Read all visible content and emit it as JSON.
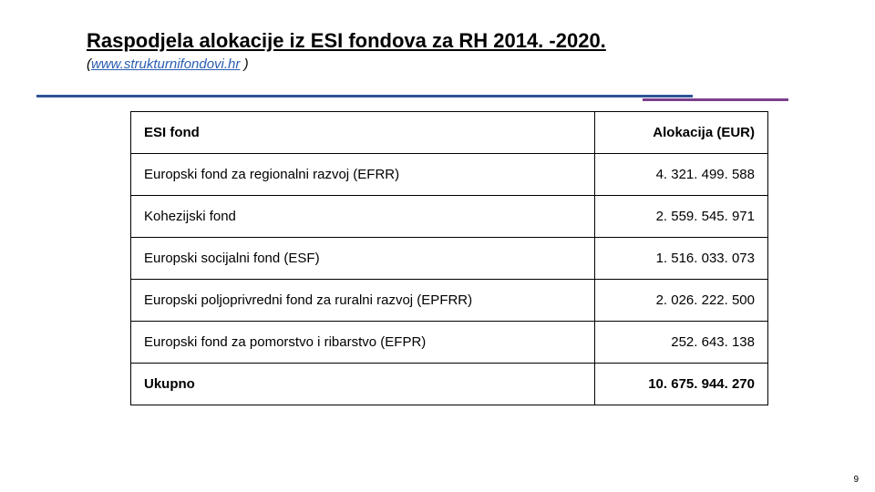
{
  "title": "Raspodjela alokacije iz ESI fondova za RH 2014. -2020.",
  "subtitle_prefix": "(",
  "subtitle_link": "www.strukturnifondovi.hr",
  "subtitle_suffix": " )",
  "table": {
    "headers": {
      "fund": "ESI fond",
      "allocation": "Alokacija (EUR)"
    },
    "rows": [
      {
        "fund": "Europski fond za regionalni razvoj (EFRR)",
        "allocation": "4. 321. 499. 588"
      },
      {
        "fund": "Kohezijski fond",
        "allocation": "2. 559. 545. 971"
      },
      {
        "fund": "Europski socijalni fond (ESF)",
        "allocation": "1. 516. 033. 073"
      },
      {
        "fund": "Europski poljoprivredni fond za ruralni razvoj (EPFRR)",
        "allocation": "2. 026. 222. 500"
      },
      {
        "fund": "Europski fond za pomorstvo i ribarstvo (EFPR)",
        "allocation": "252. 643. 138"
      }
    ],
    "total": {
      "fund": "Ukupno",
      "allocation": "10. 675. 944. 270"
    }
  },
  "page_number": "9",
  "colors": {
    "rule_blue": "#2f5496",
    "rule_purple": "#7b3f8c",
    "link": "#2a5db0",
    "border": "#000000",
    "background": "#ffffff"
  }
}
